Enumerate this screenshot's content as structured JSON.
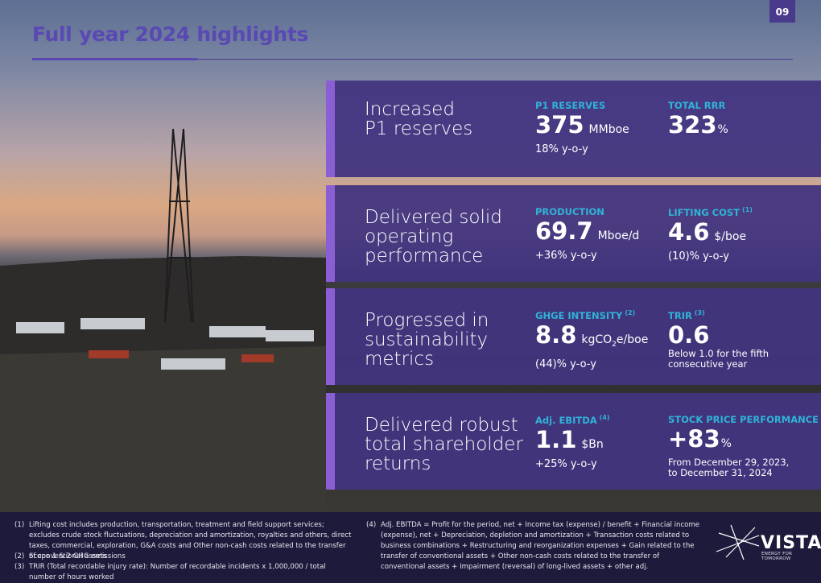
{
  "page_number": "09",
  "title": "Full year 2024 highlights",
  "panels": [
    {
      "headline": [
        "Increased",
        "P1 reserves"
      ],
      "metrics": [
        {
          "label": "P1 RESERVES",
          "value": "375",
          "unit": "MMboe",
          "note": [
            "18% y-o-y"
          ]
        },
        {
          "label": "TOTAL RRR",
          "value": "323",
          "unit": "%"
        }
      ]
    },
    {
      "headline": [
        "Delivered solid",
        "operating",
        "performance"
      ],
      "metrics": [
        {
          "label": "PRODUCTION",
          "value": "69.7",
          "unit": "Mboe/d",
          "note": [
            "+36% y-o-y"
          ]
        },
        {
          "label": "LIFTING COST",
          "ref": "(1)",
          "value": "4.6",
          "unit": "$/boe",
          "note": [
            "(10)% y-o-y"
          ]
        }
      ]
    },
    {
      "headline": [
        "Progressed in",
        "sustainability",
        "metrics"
      ],
      "metrics": [
        {
          "label": "GHGE INTENSITY",
          "ref": "(2)",
          "value": "8.8",
          "unit": [
            "kgCO",
            "2",
            "e/boe"
          ],
          "note": [
            "(44)% y-o-y"
          ]
        },
        {
          "label": "TRIR",
          "ref": "(3)",
          "value": "0.6",
          "note": [
            "Below 1.0 for the fifth",
            "consecutive year"
          ]
        }
      ]
    },
    {
      "headline": [
        "Delivered robust",
        "total shareholder",
        "returns"
      ],
      "metrics": [
        {
          "label": "Adj. EBITDA",
          "ref": "(4)",
          "value": "1.1",
          "unit": "$Bn",
          "note": [
            "+25% y-o-y"
          ]
        },
        {
          "label": "STOCK PRICE PERFORMANCE",
          "value": "+83",
          "unit": "%",
          "note": [
            "From December 29, 2023,",
            "to December 31, 2024"
          ]
        }
      ]
    }
  ],
  "footnotes": [
    {
      "marker": "(1)",
      "text": "Lifting cost includes production, transportation, treatment and field support services; excludes crude stock fluctuations, depreciation and amortization, royalties and others, direct taxes, commercial, exploration, G&A costs and Other non-cash costs related to the transfer of conventional assets"
    },
    {
      "marker": "(2)",
      "text": "Scope 1 & 2 GHG emissions"
    },
    {
      "marker": "(3)",
      "text": "TRIR (Total recordable injury rate): Number of recordable incidents x 1,000,000 / total number of hours worked"
    },
    {
      "marker": "(4)",
      "text": "Adj. EBITDA = Profit for the period, net + Income tax (expense) / benefit + Financial income (expense), net + Depreciation, depletion and amortization + Transaction costs related to business combinations + Restructuring and reorganization expenses + Gain related to the transfer of conventional assets + Other non-cash costs related to the transfer of conventional assets + Impairment (reversal) of long-lived assets + other adj."
    }
  ],
  "logo": {
    "name": "VISTA",
    "tagline": "ENERGY FOR TOMORROW"
  }
}
